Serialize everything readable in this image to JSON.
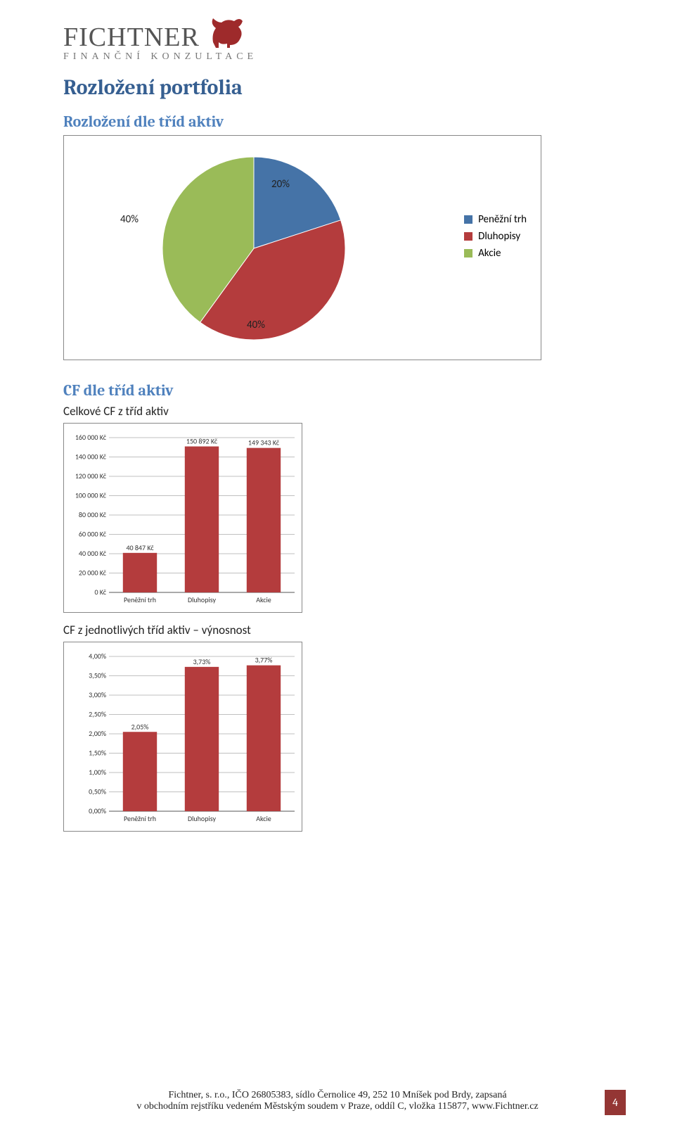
{
  "logo": {
    "main": "FICHTNER",
    "sub": "FINANČNÍ KONZULTACE",
    "bull_color": "#9e2a2b"
  },
  "title": "Rozložení portfolia",
  "pie_section": {
    "heading": "Rozložení dle tříd aktiv",
    "type": "pie",
    "slices": [
      {
        "label": "Peněžní trh",
        "value": 20,
        "display": "20%",
        "color": "#4573a7"
      },
      {
        "label": "Dluhopisy",
        "value": 40,
        "display": "40%",
        "color": "#b43c3d"
      },
      {
        "label": "Akcie",
        "value": 40,
        "display": "40%",
        "color": "#9abb58"
      }
    ],
    "border_color": "#888888",
    "background_color": "#ffffff",
    "label_fontsize": 15
  },
  "bar1_section": {
    "heading": "CF dle tříd aktiv",
    "subtext": "Celkové CF z tříd aktiv",
    "type": "bar",
    "categories": [
      "Peněžní trh",
      "Dluhopisy",
      "Akcie"
    ],
    "values": [
      40847,
      150892,
      149343
    ],
    "value_labels": [
      "40 847 Kč",
      "150 892 Kč",
      "149 343 Kč"
    ],
    "bar_color": "#b43c3d",
    "ylim": [
      0,
      160000
    ],
    "ytick_step": 20000,
    "ytick_labels": [
      "0 Kč",
      "20 000 Kč",
      "40 000 Kč",
      "60 000 Kč",
      "80 000 Kč",
      "100 000 Kč",
      "120 000 Kč",
      "140 000 Kč",
      "160 000 Kč"
    ],
    "grid_color": "#808080",
    "background_color": "#ffffff",
    "border_color": "#888888",
    "bar_width": 0.55
  },
  "bar2_section": {
    "subtext": "CF z jednotlivých tříd aktiv – výnosnost",
    "type": "bar",
    "categories": [
      "Peněžní trh",
      "Dluhopisy",
      "Akcie"
    ],
    "values": [
      2.05,
      3.73,
      3.77
    ],
    "value_labels": [
      "2,05%",
      "3,73%",
      "3,77%"
    ],
    "bar_color": "#b43c3d",
    "ylim": [
      0,
      4.0
    ],
    "ytick_step": 0.5,
    "ytick_labels": [
      "0,00%",
      "0,50%",
      "1,00%",
      "1,50%",
      "2,00%",
      "2,50%",
      "3,00%",
      "3,50%",
      "4,00%"
    ],
    "grid_color": "#808080",
    "background_color": "#ffffff",
    "border_color": "#888888",
    "bar_width": 0.55
  },
  "footer": {
    "line1": "Fichtner, s. r.o., IČO 26805383, sídlo Černolice 49, 252 10 Mníšek pod Brdy, zapsaná",
    "line2": "v obchodním rejstříku vedeném Městským soudem v Praze, oddíl C, vložka 115877, www.Fichtner.cz",
    "page_num": "4",
    "page_num_bg": "#943634"
  }
}
